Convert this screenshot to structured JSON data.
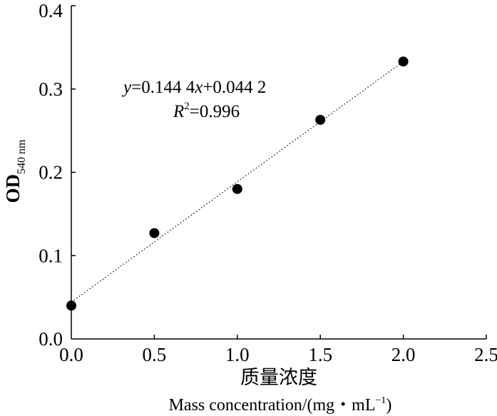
{
  "chart_data": {
    "type": "scatter",
    "x": [
      0.0,
      0.5,
      1.0,
      1.5,
      2.0
    ],
    "y": [
      0.04,
      0.127,
      0.18,
      0.263,
      0.333
    ],
    "xlim": [
      0,
      2.5
    ],
    "ylim": [
      0,
      0.4
    ],
    "xticks": [
      "0.0",
      "0.5",
      "1.0",
      "1.5",
      "2.0",
      "2.5"
    ],
    "yticks": [
      "0.0",
      "0.1",
      "0.2",
      "0.3",
      "0.4"
    ],
    "xlabel_cn": "质量浓度",
    "xlabel_en": "Mass concentration/(mg・mL",
    "xlabel_en_sup": "−1",
    "xlabel_en_end": ")",
    "ylabel": "OD",
    "ylabel_sub": "540 nm",
    "fit": {
      "slope": 0.1444,
      "intercept": 0.0442,
      "equation": {
        "y": "y",
        "eq1": "=0.144 4",
        "x": "x",
        "eq2": "+0.044 2"
      },
      "r2": {
        "r": "R",
        "sup": "2",
        "val": "=0.996"
      },
      "style": "dotted"
    },
    "grid": false,
    "marker_color": "#000000"
  }
}
